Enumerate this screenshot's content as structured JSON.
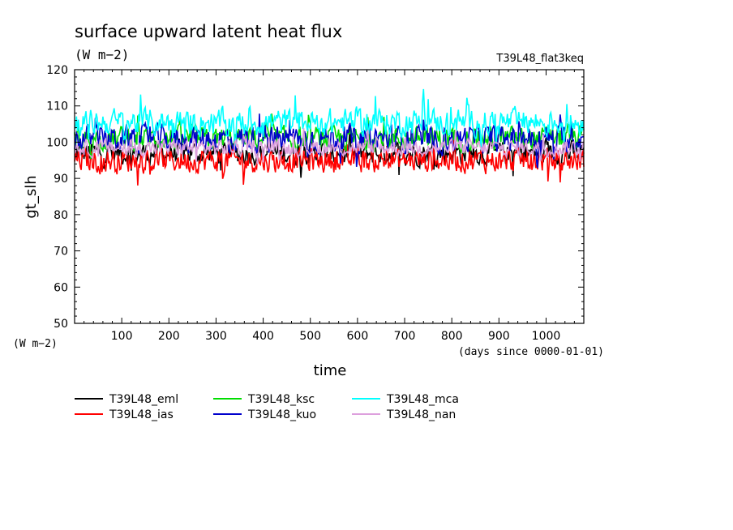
{
  "chart_data": {
    "type": "line",
    "title": "surface upward latent heat flux",
    "title_units": "(W m−2)",
    "experiment": "T39L48_flat3keq",
    "ylabel": "gt_slh",
    "yunits": "(W m−2)",
    "xlabel": "time",
    "xunits": "(days since 0000-01-01)",
    "xlim": [
      0,
      1080
    ],
    "ylim": [
      50,
      120
    ],
    "xticks": [
      100,
      200,
      300,
      400,
      500,
      600,
      700,
      800,
      900,
      1000
    ],
    "yticks": [
      50,
      60,
      70,
      80,
      90,
      100,
      110,
      120
    ],
    "grid": false,
    "legend_position": "bottom",
    "series": [
      {
        "name": "T39L48_eml",
        "color": "#000000",
        "mean": 97,
        "amp": 4.0,
        "x": [
          0,
          540,
          1080
        ],
        "values": [
          97,
          97,
          97
        ]
      },
      {
        "name": "T39L48_ias",
        "color": "#ff0000",
        "mean": 95,
        "amp": 4.2,
        "x": [
          0,
          540,
          1080
        ],
        "values": [
          95,
          95,
          95
        ]
      },
      {
        "name": "T39L48_ksc",
        "color": "#00dd00",
        "mean": 101,
        "amp": 4.0,
        "x": [
          0,
          540,
          1080
        ],
        "values": [
          101,
          101,
          101
        ]
      },
      {
        "name": "T39L48_kuo",
        "color": "#0000cc",
        "mean": 101,
        "amp": 4.5,
        "x": [
          0,
          540,
          1080
        ],
        "values": [
          101,
          101,
          101
        ]
      },
      {
        "name": "T39L48_mca",
        "color": "#00ffff",
        "mean": 105.5,
        "amp": 4.5,
        "x": [
          0,
          540,
          1080
        ],
        "values": [
          105.5,
          105.5,
          105.5
        ]
      },
      {
        "name": "T39L48_nan",
        "color": "#dda0dd",
        "mean": 98.5,
        "amp": 2.8,
        "x": [
          0,
          540,
          1080
        ],
        "values": [
          98.5,
          98.5,
          98.5
        ]
      }
    ]
  }
}
